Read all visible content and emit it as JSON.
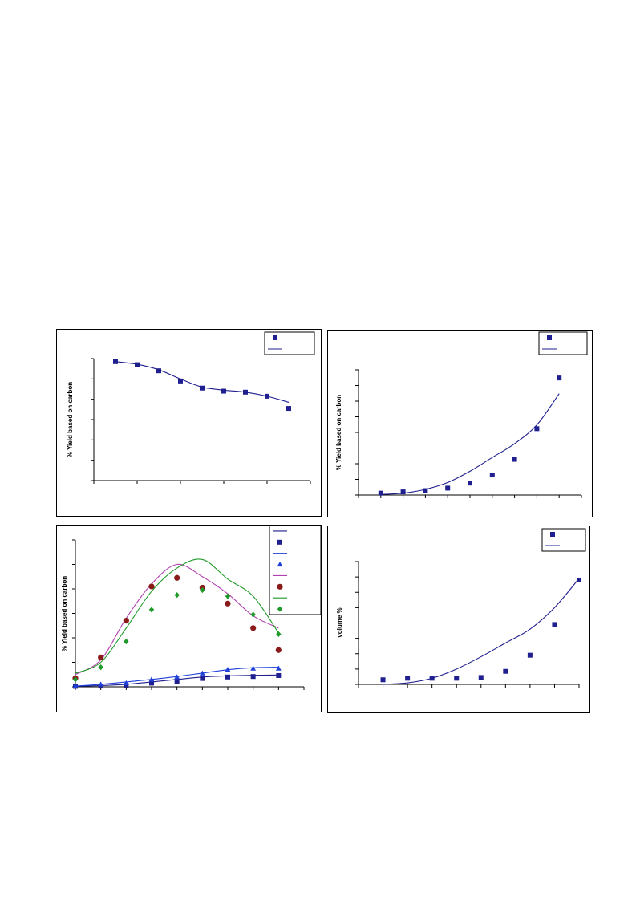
{
  "chart_data": [
    {
      "id": "panel-a",
      "type": "scatter",
      "title": "",
      "xlabel": "",
      "ylabel": "%  Yield based on carbon",
      "xlim": [
        0,
        10
      ],
      "ylim": [
        0,
        6
      ],
      "grid": false,
      "legend": "top-right",
      "colors": {
        "series": "#1f1f8f"
      },
      "series": [
        {
          "kind": "points",
          "marker": "square",
          "x": [
            1,
            2,
            3,
            4,
            5,
            6,
            7,
            8,
            9
          ],
          "y": [
            5.85,
            5.7,
            5.4,
            4.9,
            4.55,
            4.4,
            4.35,
            4.15,
            3.55
          ]
        },
        {
          "kind": "line",
          "x": [
            1,
            2,
            3,
            4,
            5,
            6,
            7,
            8,
            9
          ],
          "y": [
            5.85,
            5.72,
            5.45,
            5.0,
            4.6,
            4.45,
            4.35,
            4.15,
            3.85
          ]
        }
      ]
    },
    {
      "id": "panel-b",
      "type": "scatter",
      "title": "",
      "xlabel": "",
      "ylabel": "%  Yield based on carbon",
      "xlim": [
        0,
        10
      ],
      "ylim": [
        0,
        10
      ],
      "grid": false,
      "legend": "top-right",
      "colors": {
        "series": "#1f1f8f"
      },
      "series": [
        {
          "kind": "points",
          "marker": "square",
          "x": [
            1,
            2,
            3,
            4,
            5,
            6,
            7,
            8,
            9
          ],
          "y": [
            0.15,
            0.25,
            0.35,
            0.55,
            0.95,
            1.6,
            2.85,
            5.3,
            9.35
          ]
        },
        {
          "kind": "line",
          "x": [
            1,
            2,
            3,
            4,
            5,
            6,
            7,
            8,
            9
          ],
          "y": [
            0.05,
            0.15,
            0.45,
            1.0,
            1.9,
            3.0,
            4.1,
            5.6,
            8.1
          ]
        }
      ]
    },
    {
      "id": "panel-c",
      "type": "scatter",
      "title": "",
      "xlabel": "",
      "ylabel": "% Yield based on carbon",
      "xlim": [
        0,
        9
      ],
      "ylim": [
        0,
        6
      ],
      "grid": false,
      "legend": "top-right",
      "colors": {
        "navy": "#1f1f8f",
        "blue": "#1f3fd8",
        "maroon": "#8b1a1a",
        "magenta": "#b040b0",
        "green": "#1f9a2a"
      },
      "series": [
        {
          "kind": "line",
          "color": "#1f1f8f",
          "x": [
            0,
            1,
            2,
            3,
            4,
            5,
            6,
            7,
            8
          ],
          "y": [
            0.02,
            0.05,
            0.1,
            0.2,
            0.3,
            0.4,
            0.45,
            0.47,
            0.48
          ]
        },
        {
          "kind": "points",
          "marker": "square",
          "color": "#1f1f8f",
          "x": [
            0,
            1,
            2,
            3,
            4,
            5,
            6,
            7,
            8
          ],
          "y": [
            0.02,
            0.03,
            0.06,
            0.15,
            0.22,
            0.34,
            0.4,
            0.42,
            0.46
          ]
        },
        {
          "kind": "line",
          "color": "#1f3fd8",
          "x": [
            0,
            1,
            2,
            3,
            4,
            5,
            6,
            7,
            8
          ],
          "y": [
            0.03,
            0.1,
            0.2,
            0.3,
            0.42,
            0.56,
            0.7,
            0.78,
            0.8
          ]
        },
        {
          "kind": "points",
          "marker": "triangle",
          "color": "#1f3fd8",
          "x": [
            0,
            1,
            2,
            3,
            4,
            5,
            6,
            7,
            8
          ],
          "y": [
            0.03,
            0.1,
            0.15,
            0.3,
            0.4,
            0.55,
            0.7,
            0.75,
            0.75
          ]
        },
        {
          "kind": "line",
          "color": "#b040b0",
          "x": [
            0,
            1,
            2,
            3,
            4,
            5,
            6,
            7,
            8
          ],
          "y": [
            0.5,
            1.1,
            2.8,
            4.2,
            5.0,
            4.5,
            3.8,
            2.9,
            2.4
          ]
        },
        {
          "kind": "points",
          "marker": "circle",
          "color": "#8b1a1a",
          "x": [
            0,
            1,
            2,
            3,
            4,
            5,
            6,
            7,
            8
          ],
          "y": [
            0.35,
            1.2,
            2.7,
            4.1,
            4.45,
            4.05,
            3.4,
            2.4,
            1.5
          ]
        },
        {
          "kind": "line",
          "color": "#1f9a2a",
          "x": [
            0,
            1,
            2,
            3,
            4,
            5,
            6,
            7,
            8
          ],
          "y": [
            0.55,
            1.0,
            2.4,
            3.9,
            4.85,
            5.2,
            4.4,
            3.7,
            2.2
          ]
        },
        {
          "kind": "points",
          "marker": "diamond",
          "color": "#1f9a2a",
          "x": [
            0,
            1,
            2,
            3,
            4,
            5,
            6,
            7,
            8
          ],
          "y": [
            0.3,
            0.8,
            1.85,
            3.15,
            3.75,
            3.95,
            3.7,
            2.95,
            2.15
          ]
        }
      ]
    },
    {
      "id": "panel-d",
      "type": "scatter",
      "title": "",
      "xlabel": "",
      "ylabel": "volume %",
      "xlim": [
        0,
        9
      ],
      "ylim": [
        0,
        8
      ],
      "grid": false,
      "legend": "top-right",
      "colors": {
        "series": "#1f1f8f"
      },
      "series": [
        {
          "kind": "points",
          "marker": "square",
          "x": [
            1,
            2,
            3,
            4,
            5,
            6,
            7,
            8,
            9
          ],
          "y": [
            0.3,
            0.4,
            0.4,
            0.4,
            0.45,
            0.85,
            1.9,
            3.9,
            6.8
          ]
        },
        {
          "kind": "line",
          "x": [
            1,
            2,
            3,
            4,
            5,
            6,
            7,
            8,
            9
          ],
          "y": [
            0.0,
            0.1,
            0.4,
            1.0,
            1.8,
            2.7,
            3.6,
            5.0,
            6.9
          ]
        }
      ]
    }
  ]
}
